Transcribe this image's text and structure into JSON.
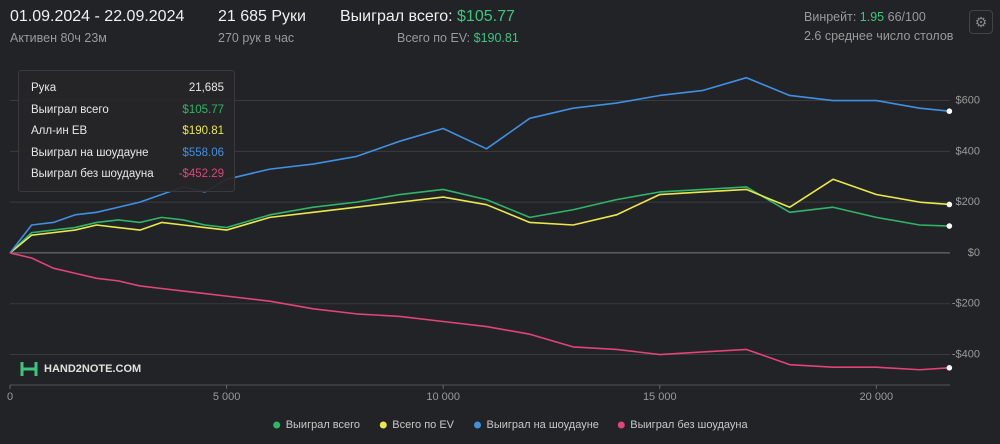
{
  "header": {
    "date_range": "01.09.2024 - 22.09.2024",
    "active": "Активен 80ч 23м",
    "hands": "21 685 Руки",
    "hands_rate": "270 рук в час",
    "won_label": "Выиграл всего:",
    "won_value": "$105.77",
    "ev_label": "Всего по EV:",
    "ev_value": "$190.81",
    "winrate_label": "Винрейт:",
    "winrate_value": "1.95",
    "winrate_unit": "66/100",
    "tables": "2.6 среднее число столов"
  },
  "tooltip": {
    "rows": [
      {
        "label": "Рука",
        "value": "21,685"
      },
      {
        "label": "Выиграл всего",
        "value": "$105.77"
      },
      {
        "label": "Алл-ин EB",
        "value": "$190.81"
      },
      {
        "label": "Выиграл на шоудауне",
        "value": "$558.06"
      },
      {
        "label": "Выиграл без шоудауна",
        "value": "-$452.29"
      }
    ]
  },
  "logo": "HAND2NOTE.COM",
  "chart_data": {
    "type": "line",
    "grid": true,
    "legend": "bottom",
    "x": [
      0,
      500,
      1000,
      1500,
      2000,
      2500,
      3000,
      3500,
      4000,
      4500,
      5000,
      6000,
      7000,
      8000,
      9000,
      10000,
      11000,
      12000,
      13000,
      14000,
      15000,
      16000,
      17000,
      18000,
      19000,
      20000,
      21000,
      21685
    ],
    "xlim": [
      0,
      21700
    ],
    "xticks": [
      0,
      {
        "value": 5000,
        "label": "5 000"
      },
      {
        "value": 10000,
        "label": "10 000"
      },
      {
        "value": 15000,
        "label": "15 000"
      },
      {
        "value": 20000,
        "label": "20 000"
      }
    ],
    "ylim": [
      -520,
      740
    ],
    "yticks": [
      {
        "value": -400,
        "label": "-$400"
      },
      {
        "value": -200,
        "label": "-$200"
      },
      {
        "value": 0,
        "label": "$0"
      },
      {
        "value": 200,
        "label": "$200"
      },
      {
        "value": 400,
        "label": "$400"
      },
      {
        "value": 600,
        "label": "$600"
      }
    ],
    "series": [
      {
        "name": "Выиграл всего",
        "color": "#2fb56a",
        "values": [
          0,
          80,
          90,
          100,
          120,
          130,
          120,
          140,
          130,
          110,
          100,
          150,
          180,
          200,
          230,
          250,
          210,
          140,
          170,
          210,
          240,
          250,
          260,
          160,
          180,
          140,
          110,
          105.77
        ]
      },
      {
        "name": "Всего по EV",
        "color": "#e9e84c",
        "values": [
          0,
          70,
          80,
          90,
          110,
          100,
          90,
          120,
          110,
          100,
          90,
          140,
          160,
          180,
          200,
          220,
          190,
          120,
          110,
          150,
          230,
          240,
          250,
          180,
          290,
          230,
          200,
          190.81
        ]
      },
      {
        "name": "Выиграл на шоудауне",
        "color": "#3f90e2",
        "values": [
          0,
          110,
          120,
          150,
          160,
          180,
          200,
          230,
          260,
          240,
          290,
          330,
          350,
          380,
          440,
          490,
          410,
          530,
          570,
          590,
          620,
          640,
          690,
          620,
          600,
          600,
          570,
          558.06
        ]
      },
      {
        "name": "Выиграл без шоудауна",
        "color": "#e04478",
        "values": [
          0,
          -20,
          -60,
          -80,
          -100,
          -110,
          -130,
          -140,
          -150,
          -160,
          -170,
          -190,
          -220,
          -240,
          -250,
          -270,
          -290,
          -320,
          -370,
          -380,
          -400,
          -390,
          -380,
          -440,
          -450,
          -450,
          -460,
          -452.29
        ]
      }
    ]
  }
}
